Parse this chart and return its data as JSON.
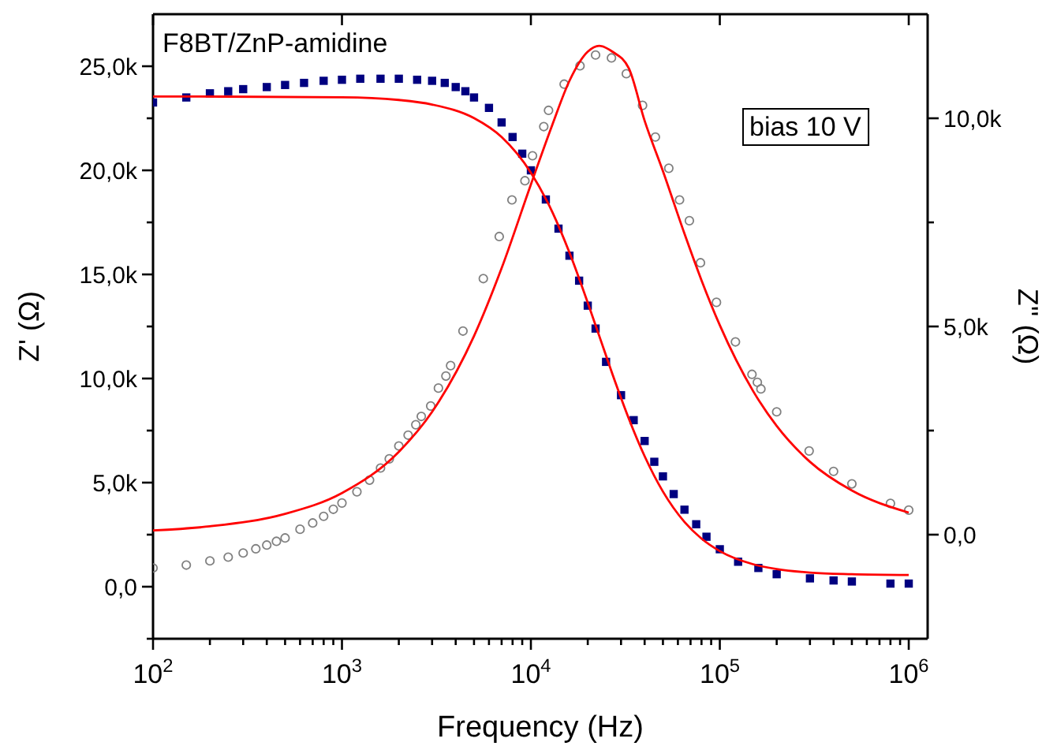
{
  "chart_data": {
    "type": "scatter",
    "xlabel": "Frequency (Hz)",
    "ylabel": "Z' (Ω)",
    "y2label": "Z'' (Ω)",
    "log": "x",
    "annotations": [
      "F8BT/ZnP-amidine",
      "bias 10 V"
    ],
    "xlim": [
      100,
      1258925
    ],
    "xticks": [
      {
        "value": 100,
        "label": "10$^{2}$"
      },
      {
        "value": 200,
        "label": null
      },
      {
        "value": 300,
        "label": null
      },
      {
        "value": 400,
        "label": null
      },
      {
        "value": 500,
        "label": null
      },
      {
        "value": 600,
        "label": null
      },
      {
        "value": 700,
        "label": null
      },
      {
        "value": 800,
        "label": null
      },
      {
        "value": 900,
        "label": null
      },
      {
        "value": 1000,
        "label": "10$^{3}$"
      },
      {
        "value": 2000,
        "label": null
      },
      {
        "value": 3000,
        "label": null
      },
      {
        "value": 4000,
        "label": null
      },
      {
        "value": 5000,
        "label": null
      },
      {
        "value": 6000,
        "label": null
      },
      {
        "value": 7000,
        "label": null
      },
      {
        "value": 8000,
        "label": null
      },
      {
        "value": 9000,
        "label": null
      },
      {
        "value": 10000,
        "label": "10$^{4}$"
      },
      {
        "value": 20000,
        "label": null
      },
      {
        "value": 30000,
        "label": null
      },
      {
        "value": 40000,
        "label": null
      },
      {
        "value": 50000,
        "label": null
      },
      {
        "value": 60000,
        "label": null
      },
      {
        "value": 70000,
        "label": null
      },
      {
        "value": 80000,
        "label": null
      },
      {
        "value": 90000,
        "label": null
      },
      {
        "value": 100000,
        "label": "10$^{5}$"
      },
      {
        "value": 200000,
        "label": null
      },
      {
        "value": 300000,
        "label": null
      },
      {
        "value": 400000,
        "label": null
      },
      {
        "value": 500000,
        "label": null
      },
      {
        "value": 600000,
        "label": null
      },
      {
        "value": 700000,
        "label": null
      },
      {
        "value": 800000,
        "label": null
      },
      {
        "value": 900000,
        "label": null
      },
      {
        "value": 1000000,
        "label": "10$^{6}$"
      }
    ],
    "ylim": [
      -2500,
      27500
    ],
    "yticks": [
      {
        "value": -2500,
        "label": null
      },
      {
        "value": 0,
        "label": "0,0"
      },
      {
        "value": 2500,
        "label": null
      },
      {
        "value": 5000,
        "label": "5,0k"
      },
      {
        "value": 7500,
        "label": null
      },
      {
        "value": 10000,
        "label": "10,0k"
      },
      {
        "value": 12500,
        "label": null
      },
      {
        "value": 15000,
        "label": "15,0k"
      },
      {
        "value": 17500,
        "label": null
      },
      {
        "value": 20000,
        "label": "20,0k"
      },
      {
        "value": 22500,
        "label": null
      },
      {
        "value": 25000,
        "label": "25,0k"
      }
    ],
    "y2lim": [
      -2500,
      12500
    ],
    "y2ticks": [
      {
        "value": 0,
        "label": "0,0"
      },
      {
        "value": 2500,
        "label": null
      },
      {
        "value": 5000,
        "label": "5,0k"
      },
      {
        "value": 7500,
        "label": null
      },
      {
        "value": 10000,
        "label": "10,0k"
      }
    ],
    "series": [
      {
        "marker": "square",
        "color": "#000080",
        "x": [
          100,
          150,
          200,
          250,
          300,
          400,
          500,
          630,
          800,
          1000,
          1250,
          1600,
          2000,
          2500,
          3000,
          3500,
          4000,
          4500,
          5000,
          6000,
          7000,
          8000,
          9000,
          10000,
          12000,
          14000,
          16000,
          18000,
          20000,
          22000,
          25000,
          30000,
          35000,
          40000,
          45000,
          50000,
          57000,
          65000,
          75000,
          85000,
          100000,
          125000,
          160000,
          200000,
          300000,
          400000,
          500000,
          800000,
          1000000
        ],
        "values": [
          23260,
          23500,
          23700,
          23800,
          23900,
          24000,
          24100,
          24200,
          24300,
          24350,
          24400,
          24400,
          24400,
          24350,
          24300,
          24200,
          24000,
          23800,
          23500,
          23000,
          22300,
          21600,
          20800,
          20000,
          18600,
          17200,
          15900,
          14700,
          13500,
          12400,
          10800,
          9200,
          8000,
          7000,
          6000,
          5300,
          4450,
          3700,
          3000,
          2400,
          1800,
          1200,
          900,
          600,
          400,
          300,
          250,
          150,
          150
        ]
      },
      {
        "marker": "circle",
        "color": "#808080",
        "axis": "y2",
        "x": [
          100,
          150,
          200,
          250,
          300,
          350,
          400,
          450,
          500,
          600,
          700,
          800,
          900,
          1000,
          1200,
          1400,
          1600,
          1780,
          2000,
          2240,
          2460,
          2630,
          2950,
          3240,
          3550,
          3760,
          4370,
          5600,
          6800,
          7940,
          9300,
          10200,
          11700,
          12400,
          15000,
          18200,
          22000,
          26700,
          32000,
          39000,
          45600,
          53700,
          61200,
          69000,
          79000,
          96000,
          121000,
          148000,
          158000,
          165000,
          200000,
          297000,
          400000,
          500000,
          800000,
          1000000
        ],
        "values": [
          -800,
          -730,
          -630,
          -540,
          -440,
          -340,
          -250,
          -160,
          -80,
          130,
          280,
          440,
          610,
          760,
          1030,
          1310,
          1600,
          1820,
          2130,
          2390,
          2640,
          2840,
          3090,
          3520,
          3810,
          4060,
          4890,
          6150,
          7160,
          8040,
          8500,
          9100,
          9800,
          10190,
          10820,
          11260,
          11520,
          11450,
          11070,
          10310,
          9550,
          8800,
          8040,
          7540,
          6530,
          5580,
          4630,
          3850,
          3660,
          3500,
          2950,
          2010,
          1520,
          1220,
          750,
          590
        ]
      },
      {
        "type": "line",
        "color": "#ff0000",
        "x": [
          100,
          1000,
          2000,
          3000,
          5000,
          7000,
          10000,
          13000,
          16000,
          20000,
          23000,
          27000,
          33000,
          40000,
          50000,
          65000,
          80000,
          100000,
          150000,
          200000,
          300000,
          500000,
          1000000
        ],
        "values": [
          23550,
          23510,
          23380,
          23160,
          22510,
          21600,
          19890,
          17990,
          16050,
          13640,
          12050,
          10220,
          8070,
          6270,
          4570,
          3110,
          2310,
          1710,
          1080,
          850,
          680,
          600,
          560
        ]
      },
      {
        "type": "line",
        "color": "#ff0000",
        "axis": "y2",
        "x": [
          100,
          200,
          500,
          1000,
          2000,
          3000,
          5000,
          7000,
          10000,
          13000,
          16000,
          20000,
          23000,
          27000,
          33000,
          40000,
          50000,
          65000,
          80000,
          100000,
          150000,
          200000,
          300000,
          500000,
          1000000
        ],
        "values": [
          100,
          200,
          500,
          1000,
          1990,
          2950,
          4770,
          6400,
          8410,
          9850,
          10900,
          11600,
          11740,
          11600,
          11200,
          9940,
          8730,
          7230,
          6110,
          5030,
          3450,
          2610,
          1750,
          1060,
          530
        ]
      }
    ]
  }
}
